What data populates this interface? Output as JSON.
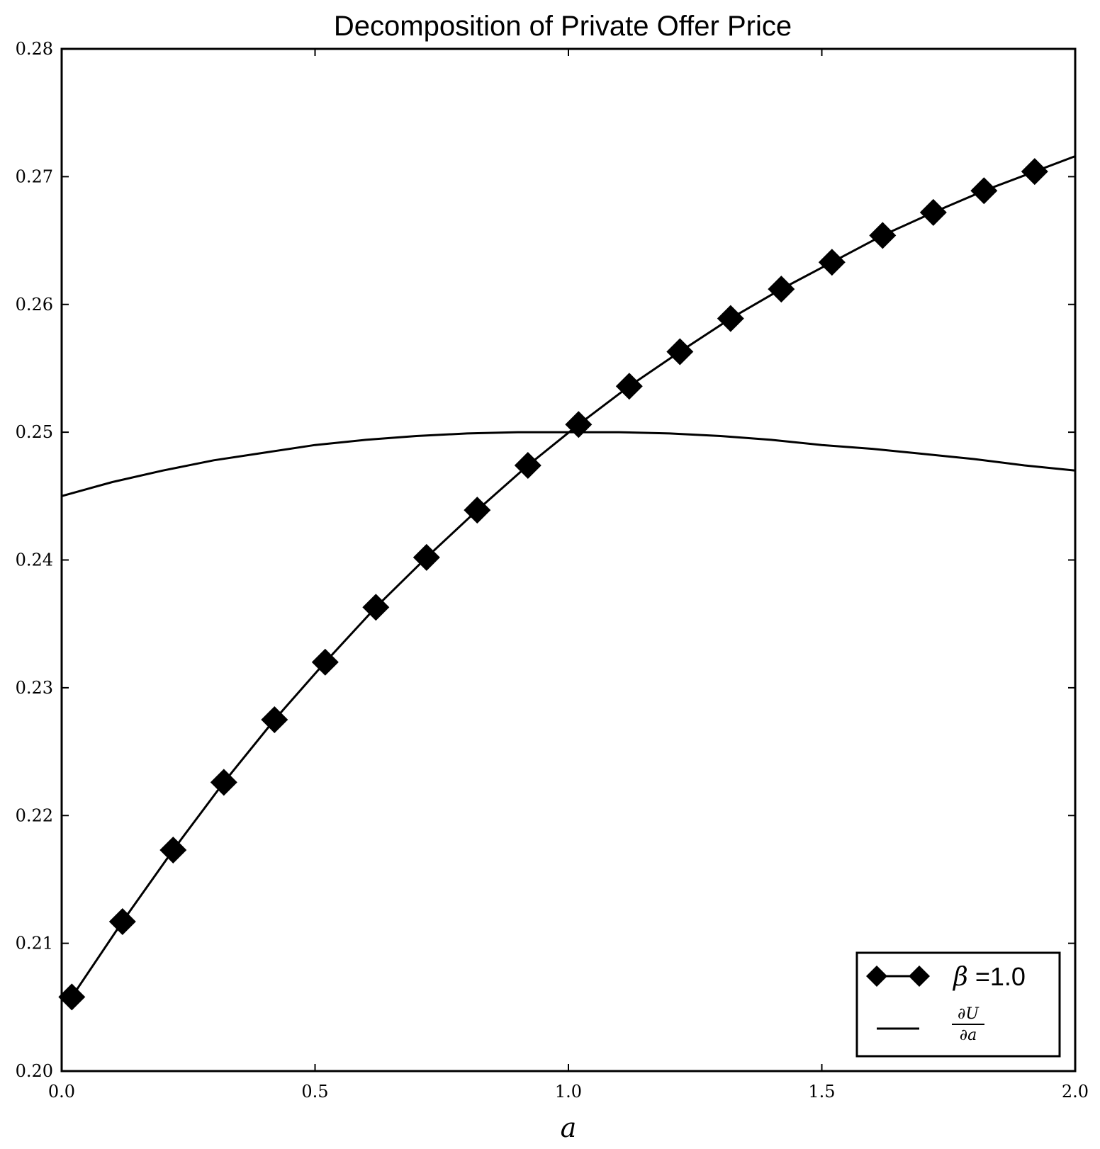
{
  "chart_data": {
    "type": "line",
    "title": "Decomposition of Private Offer Price",
    "xlabel": "a",
    "ylabel": "",
    "xlim": [
      0.0,
      2.0
    ],
    "ylim": [
      0.2,
      0.28
    ],
    "x_ticks": [
      "0.0",
      "0.5",
      "1.0",
      "1.5",
      "2.0"
    ],
    "y_ticks": [
      "0.20",
      "0.21",
      "0.22",
      "0.23",
      "0.24",
      "0.25",
      "0.26",
      "0.27",
      "0.28"
    ],
    "legend_position": "lower-right",
    "grid": false,
    "color": "#000000",
    "series": [
      {
        "name": "β =1.0",
        "legend_symbol": "β",
        "legend_value": " =1.0",
        "marker": "diamond",
        "x": [
          0.02,
          0.12,
          0.22,
          0.32,
          0.42,
          0.52,
          0.62,
          0.72,
          0.82,
          0.92,
          1.02,
          1.12,
          1.22,
          1.32,
          1.42,
          1.52,
          1.62,
          1.72,
          1.82,
          1.92,
          2.0
        ],
        "y": [
          0.2058,
          0.2117,
          0.2173,
          0.2226,
          0.2275,
          0.232,
          0.2363,
          0.2402,
          0.2439,
          0.2474,
          0.2506,
          0.2536,
          0.2563,
          0.2589,
          0.2612,
          0.2633,
          0.2654,
          0.2672,
          0.2689,
          0.2704,
          0.2716
        ],
        "marker_count": 20
      },
      {
        "name": "∂U/∂a",
        "legend_numerator": "∂U",
        "legend_denominator": "∂a",
        "marker": "none",
        "x": [
          0.0,
          0.1,
          0.2,
          0.3,
          0.4,
          0.5,
          0.6,
          0.7,
          0.8,
          0.9,
          1.0,
          1.1,
          1.2,
          1.3,
          1.4,
          1.5,
          1.6,
          1.7,
          1.8,
          1.9,
          2.0
        ],
        "y": [
          0.245,
          0.2461,
          0.247,
          0.2478,
          0.2484,
          0.249,
          0.2494,
          0.2497,
          0.2499,
          0.25,
          0.25,
          0.25,
          0.2499,
          0.2497,
          0.2494,
          0.249,
          0.2487,
          0.2483,
          0.2479,
          0.2474,
          0.247
        ]
      }
    ]
  }
}
